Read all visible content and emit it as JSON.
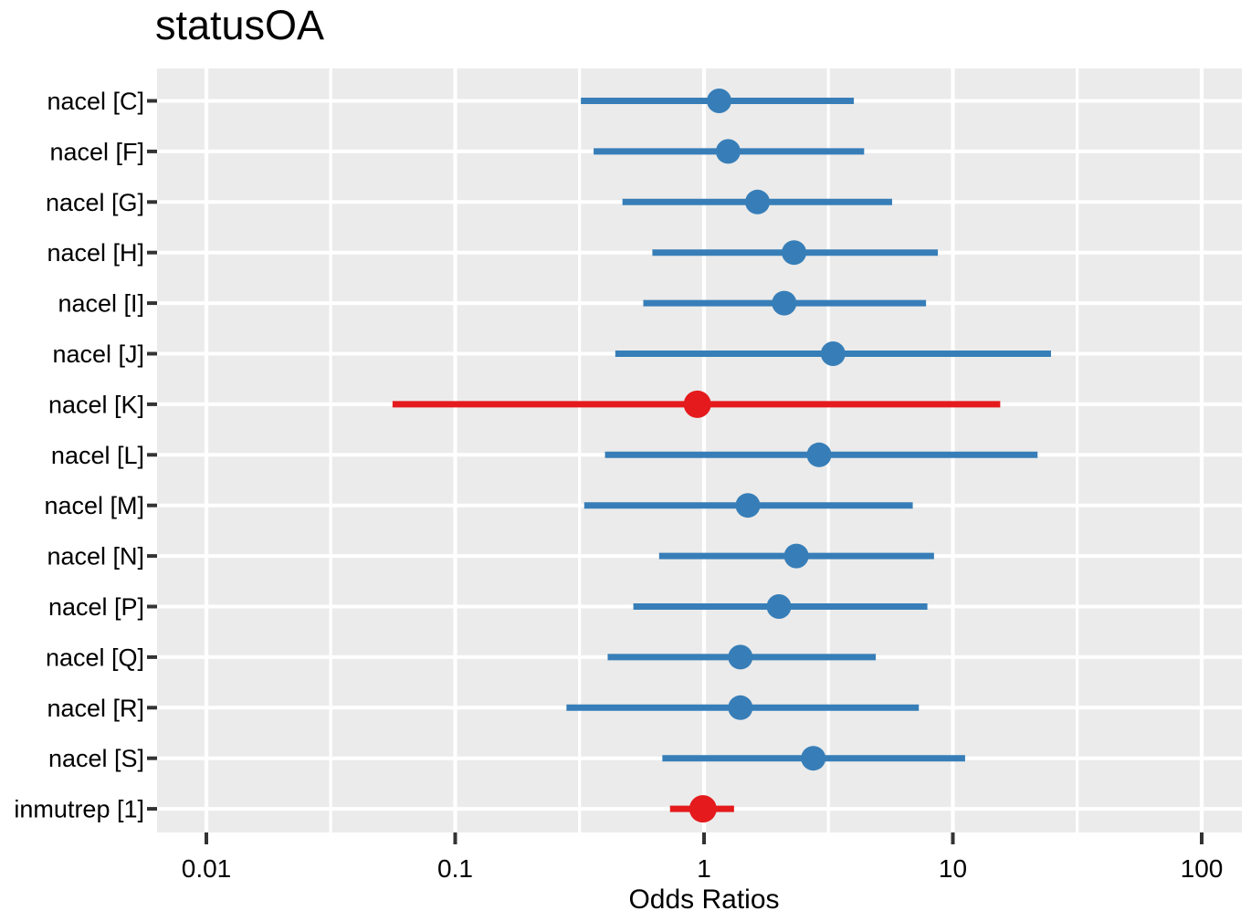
{
  "title": "statusOA",
  "x_axis": {
    "label": "Odds Ratios",
    "tick_labels": [
      "0.01",
      "0.1",
      "1",
      "10",
      "100"
    ],
    "tick_values": [
      0.01,
      0.1,
      1,
      10,
      100
    ],
    "minor_gridline_values": [
      0.0316,
      0.316,
      3.16,
      31.6
    ],
    "scale": "log10"
  },
  "chart_data": {
    "type": "scatter",
    "subtype": "forest-plot-odds-ratios",
    "title": "statusOA",
    "xlabel": "Odds Ratios",
    "ylabel": "",
    "x_scale": "log10",
    "xlim": [
      0.006,
      145
    ],
    "grid": "on",
    "legend": "none",
    "categories": [
      "nacel [C]",
      "nacel [F]",
      "nacel [G]",
      "nacel [H]",
      "nacel [I]",
      "nacel [J]",
      "nacel [K]",
      "nacel [L]",
      "nacel [M]",
      "nacel [N]",
      "nacel [P]",
      "nacel [Q]",
      "nacel [R]",
      "nacel [S]",
      "inmutrep [1]"
    ],
    "rows": [
      {
        "label": "nacel [C]",
        "or": 1.15,
        "ci_low": 0.32,
        "ci_high": 4.0,
        "color": "#377EB8"
      },
      {
        "label": "nacel [F]",
        "or": 1.25,
        "ci_low": 0.36,
        "ci_high": 4.4,
        "color": "#377EB8"
      },
      {
        "label": "nacel [G]",
        "or": 1.64,
        "ci_low": 0.47,
        "ci_high": 5.7,
        "color": "#377EB8"
      },
      {
        "label": "nacel [H]",
        "or": 2.3,
        "ci_low": 0.62,
        "ci_high": 8.7,
        "color": "#377EB8"
      },
      {
        "label": "nacel [I]",
        "or": 2.1,
        "ci_low": 0.57,
        "ci_high": 7.8,
        "color": "#377EB8"
      },
      {
        "label": "nacel [J]",
        "or": 3.3,
        "ci_low": 0.44,
        "ci_high": 24.8,
        "color": "#377EB8"
      },
      {
        "label": "nacel [K]",
        "or": 0.94,
        "ci_low": 0.056,
        "ci_high": 15.5,
        "color": "#E41A1C"
      },
      {
        "label": "nacel [L]",
        "or": 2.9,
        "ci_low": 0.4,
        "ci_high": 21.9,
        "color": "#377EB8"
      },
      {
        "label": "nacel [M]",
        "or": 1.5,
        "ci_low": 0.33,
        "ci_high": 6.9,
        "color": "#377EB8"
      },
      {
        "label": "nacel [N]",
        "or": 2.35,
        "ci_low": 0.66,
        "ci_high": 8.4,
        "color": "#377EB8"
      },
      {
        "label": "nacel [P]",
        "or": 2.0,
        "ci_low": 0.52,
        "ci_high": 7.9,
        "color": "#377EB8"
      },
      {
        "label": "nacel [Q]",
        "or": 1.4,
        "ci_low": 0.41,
        "ci_high": 4.9,
        "color": "#377EB8"
      },
      {
        "label": "nacel [R]",
        "or": 1.4,
        "ci_low": 0.28,
        "ci_high": 7.3,
        "color": "#377EB8"
      },
      {
        "label": "nacel [S]",
        "or": 2.75,
        "ci_low": 0.68,
        "ci_high": 11.2,
        "color": "#377EB8"
      },
      {
        "label": "inmutrep [1]",
        "or": 0.99,
        "ci_low": 0.73,
        "ci_high": 1.32,
        "color": "#E41A1C"
      }
    ]
  },
  "colors": {
    "significant_blue": "#377EB8",
    "nonsignificant_red": "#E41A1C",
    "panel_background": "#EBEBEB",
    "gridline": "#FFFFFF",
    "tick": "#333333",
    "text": "#000000"
  }
}
